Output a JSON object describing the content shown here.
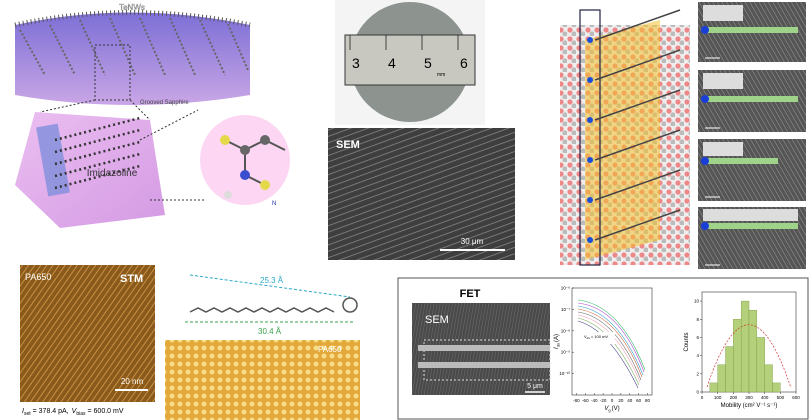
{
  "illustration": {
    "nanowires": "TeNWs",
    "substrate": "Grooved Sapphire",
    "molecule": "Imidazoline",
    "atom": "N"
  },
  "wafer": {
    "ruler": [
      "3",
      "4",
      "5",
      "mm",
      "6"
    ]
  },
  "sem_top": {
    "label": "SEM",
    "scale": "30 μm"
  },
  "stm": {
    "sample": "PA650",
    "label": "STM",
    "scale": "20 nm",
    "i_sym": "I",
    "i_sub": "set",
    "i_text": "= 378.4 pA,",
    "v_sym": "V",
    "v_sub": "bias",
    "v_text": "= 600.0 mV"
  },
  "molecule": {
    "length_a": "25.3 Å",
    "length_b": "30.4 Å",
    "stm_sample": "PA650"
  },
  "fet": {
    "title": "FET",
    "sem_label": "SEM",
    "sem_scale": "5 μm"
  },
  "chart_data": [
    {
      "type": "histogram",
      "bins": [
        50,
        100,
        150,
        200,
        250,
        300,
        350,
        400,
        450,
        500
      ],
      "values": [
        1,
        3,
        5,
        8,
        10,
        9,
        6,
        3,
        1
      ],
      "color": "#b5d07a",
      "xlim": [
        0,
        600
      ],
      "xticks": [
        0,
        100,
        200,
        300,
        400,
        500,
        600
      ],
      "ylim": [
        0,
        11
      ],
      "yticks": [
        0,
        2,
        4,
        6,
        8,
        10
      ],
      "xlabel": "Mobility (cm² V⁻¹ s⁻¹)",
      "ylabel": "Counts"
    },
    {
      "type": "line",
      "log_y": true,
      "xlim": [
        -90,
        90
      ],
      "xticks": [
        -80,
        -60,
        -40,
        -20,
        0,
        20,
        40,
        60,
        80
      ],
      "ylim": [
        1e-11,
        1e-06
      ],
      "yticks": [
        {
          "value": 1e-06,
          "label": "10⁻⁶"
        },
        {
          "value": 1e-07,
          "label": "10⁻⁷"
        },
        {
          "value": 1e-08,
          "label": "10⁻⁸"
        },
        {
          "value": 1e-09,
          "label": "10⁻⁹"
        },
        {
          "value": 1e-10,
          "label": "10⁻¹⁰"
        }
      ],
      "ylabel_sym": "I",
      "ylabel_sub": "ds",
      "ylabel_unit": "(A)",
      "xlabel_sym": "V",
      "xlabel_sub": "g",
      "xlabel_unit": "(V)",
      "note_sym": "V",
      "note_sub": "ds",
      "note_text": "= 100 mV"
    }
  ]
}
